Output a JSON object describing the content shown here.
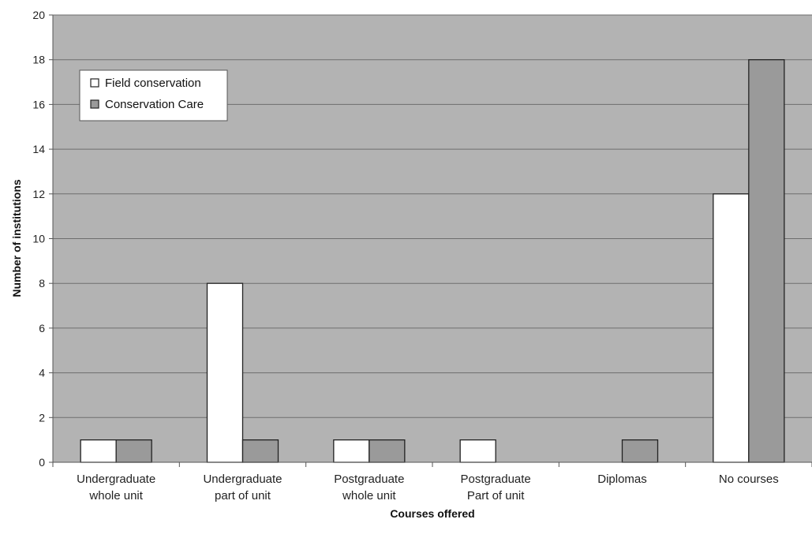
{
  "chart_data": {
    "type": "bar",
    "categories": [
      [
        "Undergraduate",
        "whole unit"
      ],
      [
        "Undergraduate",
        "part of unit"
      ],
      [
        "Postgraduate",
        "whole unit"
      ],
      [
        "Postgraduate",
        "Part of unit"
      ],
      [
        "Diplomas"
      ],
      [
        "No courses"
      ]
    ],
    "series": [
      {
        "name": "Field conservation",
        "values": [
          1,
          8,
          1,
          1,
          0,
          12
        ],
        "color": "#ffffff"
      },
      {
        "name": "Conservation Care",
        "values": [
          1,
          1,
          1,
          0,
          1,
          18
        ],
        "color": "#9a9a9a"
      }
    ],
    "xlabel": "Courses offered",
    "ylabel": "Number of institutions",
    "ylim": [
      0,
      20
    ],
    "yticks": [
      0,
      2,
      4,
      6,
      8,
      10,
      12,
      14,
      16,
      18,
      20
    ],
    "grid": true,
    "legend_position": "top-left",
    "plot_background": "#b3b3b3"
  }
}
